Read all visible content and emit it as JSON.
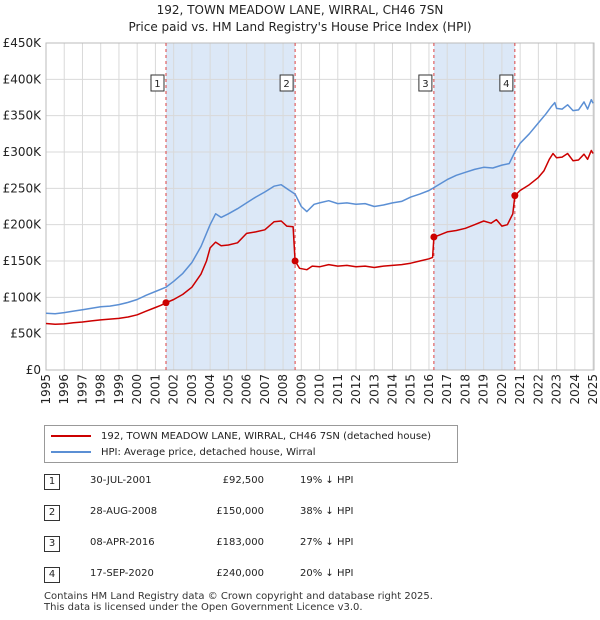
{
  "title_line1": "192, TOWN MEADOW LANE, WIRRAL, CH46 7SN",
  "title_line2": "Price paid vs. HM Land Registry's House Price Index (HPI)",
  "colors": {
    "price": "#cc0000",
    "hpi": "#5b8fd4",
    "shade": "#dce8f7",
    "grid": "#d9d9d9",
    "vline": "#dd4444"
  },
  "chart_data": {
    "type": "line",
    "xlim": [
      1995,
      2025.05
    ],
    "ylim": [
      0,
      450000
    ],
    "y_ticks": [
      {
        "value": 0,
        "label": "£0"
      },
      {
        "value": 50000,
        "label": "£50K"
      },
      {
        "value": 100000,
        "label": "£100K"
      },
      {
        "value": 150000,
        "label": "£150K"
      },
      {
        "value": 200000,
        "label": "£200K"
      },
      {
        "value": 250000,
        "label": "£250K"
      },
      {
        "value": 300000,
        "label": "£300K"
      },
      {
        "value": 350000,
        "label": "£350K"
      },
      {
        "value": 400000,
        "label": "£400K"
      },
      {
        "value": 450000,
        "label": "£450K"
      }
    ],
    "x_ticks": [
      "1995",
      "1996",
      "1997",
      "1998",
      "1999",
      "2000",
      "2001",
      "2002",
      "2003",
      "2004",
      "2005",
      "2006",
      "2007",
      "2008",
      "2009",
      "2010",
      "2011",
      "2012",
      "2013",
      "2014",
      "2015",
      "2016",
      "2017",
      "2018",
      "2019",
      "2020",
      "2021",
      "2022",
      "2023",
      "2024",
      "2025"
    ],
    "shaded_periods": [
      [
        2001.58,
        2008.66
      ],
      [
        2016.27,
        2020.71
      ]
    ],
    "series": [
      {
        "name": "192, TOWN MEADOW LANE, WIRRAL, CH46 7SN (detached house)",
        "color": "#cc0000",
        "points": [
          [
            1995.0,
            64000
          ],
          [
            1995.5,
            63000
          ],
          [
            1996.0,
            63500
          ],
          [
            1996.5,
            65000
          ],
          [
            1997.0,
            66000
          ],
          [
            1997.5,
            67500
          ],
          [
            1998.0,
            69000
          ],
          [
            1998.5,
            70000
          ],
          [
            1999.0,
            71000
          ],
          [
            1999.5,
            73000
          ],
          [
            2000.0,
            76000
          ],
          [
            2000.5,
            81000
          ],
          [
            2001.0,
            86000
          ],
          [
            2001.3,
            89000
          ],
          [
            2001.58,
            92500
          ],
          [
            2002.0,
            97000
          ],
          [
            2002.5,
            104000
          ],
          [
            2003.0,
            114000
          ],
          [
            2003.5,
            132000
          ],
          [
            2003.8,
            150000
          ],
          [
            2004.0,
            168000
          ],
          [
            2004.3,
            176000
          ],
          [
            2004.6,
            171000
          ],
          [
            2005.0,
            172000
          ],
          [
            2005.5,
            175000
          ],
          [
            2006.0,
            188000
          ],
          [
            2006.5,
            190000
          ],
          [
            2007.0,
            193000
          ],
          [
            2007.5,
            204000
          ],
          [
            2007.9,
            205000
          ],
          [
            2008.2,
            198000
          ],
          [
            2008.55,
            197000
          ],
          [
            2008.66,
            150000
          ],
          [
            2008.9,
            140000
          ],
          [
            2009.3,
            138000
          ],
          [
            2009.6,
            143000
          ],
          [
            2010.0,
            142000
          ],
          [
            2010.5,
            145000
          ],
          [
            2011.0,
            143000
          ],
          [
            2011.5,
            144000
          ],
          [
            2012.0,
            142000
          ],
          [
            2012.5,
            143000
          ],
          [
            2013.0,
            141000
          ],
          [
            2013.5,
            143000
          ],
          [
            2014.0,
            144000
          ],
          [
            2014.5,
            145000
          ],
          [
            2015.0,
            147000
          ],
          [
            2015.5,
            150000
          ],
          [
            2016.0,
            153000
          ],
          [
            2016.2,
            155000
          ],
          [
            2016.27,
            183000
          ],
          [
            2016.5,
            185000
          ],
          [
            2017.0,
            190000
          ],
          [
            2017.5,
            192000
          ],
          [
            2018.0,
            195000
          ],
          [
            2018.5,
            200000
          ],
          [
            2019.0,
            205000
          ],
          [
            2019.4,
            202000
          ],
          [
            2019.7,
            207000
          ],
          [
            2020.0,
            198000
          ],
          [
            2020.3,
            200000
          ],
          [
            2020.6,
            215000
          ],
          [
            2020.71,
            240000
          ],
          [
            2021.0,
            247000
          ],
          [
            2021.5,
            255000
          ],
          [
            2022.0,
            265000
          ],
          [
            2022.3,
            274000
          ],
          [
            2022.6,
            290000
          ],
          [
            2022.8,
            298000
          ],
          [
            2023.0,
            292000
          ],
          [
            2023.3,
            293000
          ],
          [
            2023.6,
            298000
          ],
          [
            2023.9,
            288000
          ],
          [
            2024.2,
            289000
          ],
          [
            2024.5,
            297000
          ],
          [
            2024.7,
            290000
          ],
          [
            2024.9,
            302000
          ],
          [
            2025.0,
            298000
          ]
        ]
      },
      {
        "name": "HPI: Average price, detached house, Wirral",
        "color": "#5b8fd4",
        "points": [
          [
            1995.0,
            78000
          ],
          [
            1995.5,
            77500
          ],
          [
            1996.0,
            79000
          ],
          [
            1996.5,
            81000
          ],
          [
            1997.0,
            83000
          ],
          [
            1997.5,
            85000
          ],
          [
            1998.0,
            87000
          ],
          [
            1998.5,
            88000
          ],
          [
            1999.0,
            90000
          ],
          [
            1999.5,
            93000
          ],
          [
            2000.0,
            97000
          ],
          [
            2000.5,
            103000
          ],
          [
            2001.0,
            108000
          ],
          [
            2001.58,
            114000
          ],
          [
            2002.0,
            122000
          ],
          [
            2002.5,
            133000
          ],
          [
            2003.0,
            148000
          ],
          [
            2003.5,
            170000
          ],
          [
            2004.0,
            200000
          ],
          [
            2004.3,
            215000
          ],
          [
            2004.6,
            210000
          ],
          [
            2005.0,
            215000
          ],
          [
            2005.5,
            222000
          ],
          [
            2006.0,
            230000
          ],
          [
            2006.5,
            238000
          ],
          [
            2007.0,
            245000
          ],
          [
            2007.5,
            253000
          ],
          [
            2007.9,
            255000
          ],
          [
            2008.3,
            248000
          ],
          [
            2008.66,
            242000
          ],
          [
            2009.0,
            225000
          ],
          [
            2009.3,
            218000
          ],
          [
            2009.7,
            228000
          ],
          [
            2010.0,
            230000
          ],
          [
            2010.5,
            233000
          ],
          [
            2011.0,
            229000
          ],
          [
            2011.5,
            230000
          ],
          [
            2012.0,
            228000
          ],
          [
            2012.5,
            229000
          ],
          [
            2013.0,
            225000
          ],
          [
            2013.5,
            227000
          ],
          [
            2014.0,
            230000
          ],
          [
            2014.5,
            232000
          ],
          [
            2015.0,
            238000
          ],
          [
            2015.5,
            242000
          ],
          [
            2016.0,
            247000
          ],
          [
            2016.27,
            251000
          ],
          [
            2016.6,
            256000
          ],
          [
            2017.0,
            262000
          ],
          [
            2017.5,
            268000
          ],
          [
            2018.0,
            272000
          ],
          [
            2018.5,
            276000
          ],
          [
            2019.0,
            279000
          ],
          [
            2019.5,
            278000
          ],
          [
            2020.0,
            282000
          ],
          [
            2020.4,
            284000
          ],
          [
            2020.71,
            300000
          ],
          [
            2021.0,
            312000
          ],
          [
            2021.5,
            325000
          ],
          [
            2022.0,
            340000
          ],
          [
            2022.4,
            352000
          ],
          [
            2022.7,
            362000
          ],
          [
            2022.9,
            368000
          ],
          [
            2023.0,
            360000
          ],
          [
            2023.3,
            359000
          ],
          [
            2023.6,
            365000
          ],
          [
            2023.9,
            357000
          ],
          [
            2024.2,
            358000
          ],
          [
            2024.5,
            369000
          ],
          [
            2024.7,
            359000
          ],
          [
            2024.9,
            372000
          ],
          [
            2025.0,
            367000
          ]
        ]
      }
    ],
    "sales": [
      {
        "num": "1",
        "x": 2001.58,
        "value": 92500
      },
      {
        "num": "2",
        "x": 2008.66,
        "value": 150000
      },
      {
        "num": "3",
        "x": 2016.27,
        "value": 183000
      },
      {
        "num": "4",
        "x": 2020.71,
        "value": 240000
      }
    ]
  },
  "legend": {
    "price_label": "192, TOWN MEADOW LANE, WIRRAL, CH46 7SN (detached house)",
    "hpi_label": "HPI: Average price, detached house, Wirral"
  },
  "sales_table": [
    {
      "num": "1",
      "date": "30-JUL-2001",
      "price": "£92,500",
      "diff": "19% ↓ HPI"
    },
    {
      "num": "2",
      "date": "28-AUG-2008",
      "price": "£150,000",
      "diff": "38% ↓ HPI"
    },
    {
      "num": "3",
      "date": "08-APR-2016",
      "price": "£183,000",
      "diff": "27% ↓ HPI"
    },
    {
      "num": "4",
      "date": "17-SEP-2020",
      "price": "£240,000",
      "diff": "20% ↓ HPI"
    }
  ],
  "footer_line1": "Contains HM Land Registry data © Crown copyright and database right 2025.",
  "footer_line2": "This data is licensed under the Open Government Licence v3.0."
}
